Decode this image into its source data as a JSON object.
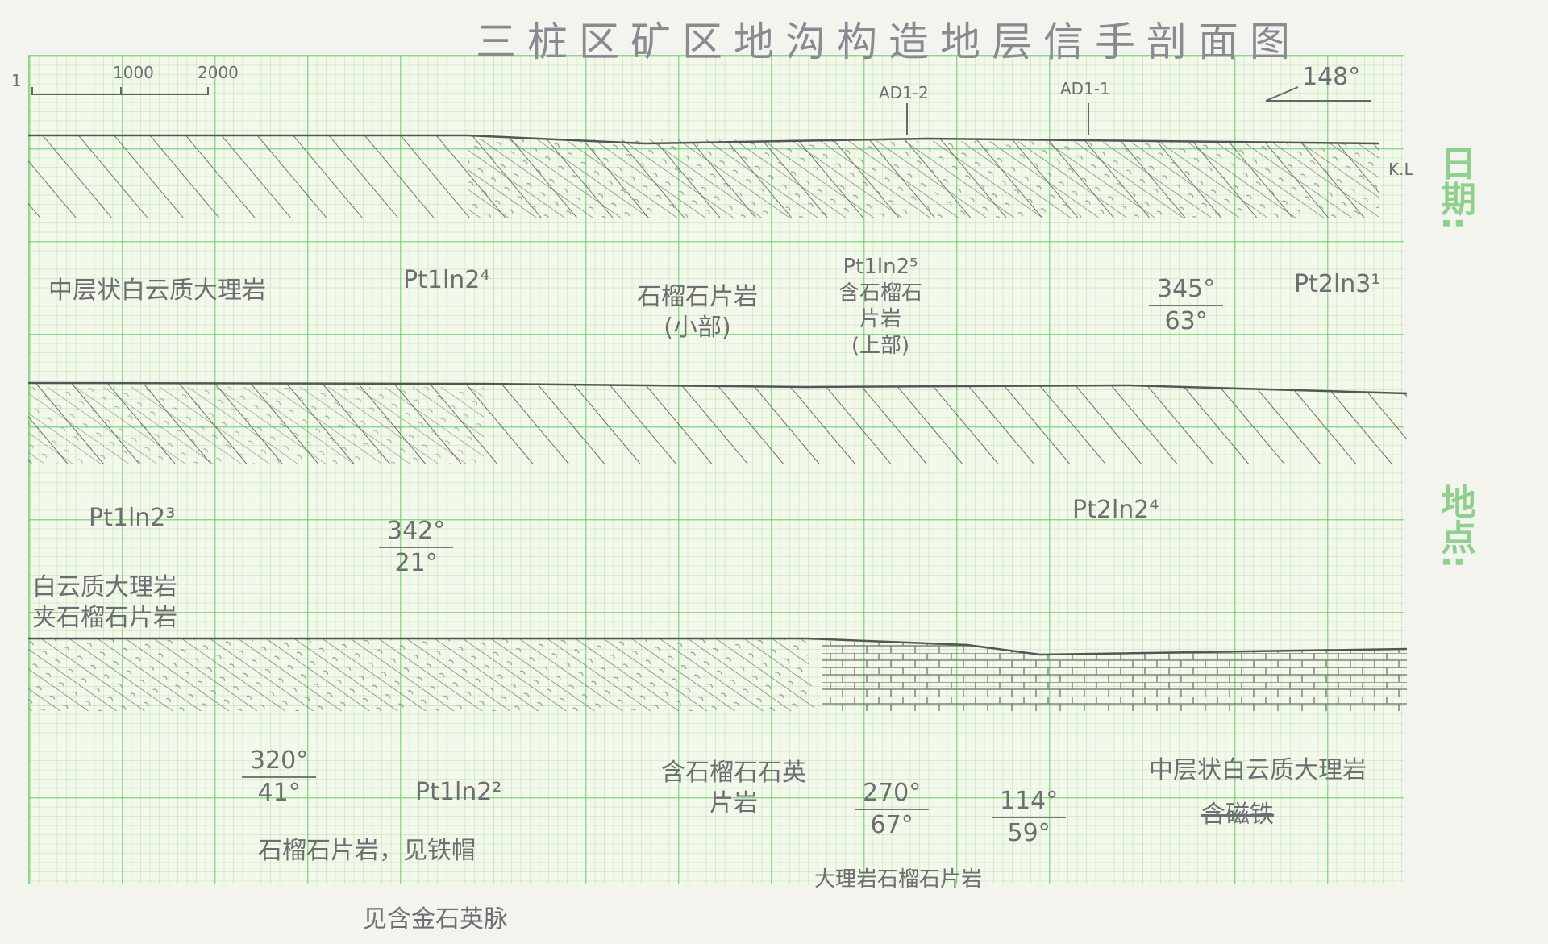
{
  "title": "三桩区矿区地沟构造地层信手剖面图",
  "scale": {
    "start": "1",
    "mid": "1000",
    "end": "2000"
  },
  "markers": {
    "m1": "AD1-2",
    "m2": "AD1-1",
    "azimuth": "148°",
    "kl": "K.L"
  },
  "side_labels": {
    "date": "日期:",
    "place": "地点:"
  },
  "row1": {
    "l1": "中层状白云质大理岩",
    "l2": "Pt1ln2⁴",
    "l3a": "石榴石片岩",
    "l3b": "(小部)",
    "l4a": "Pt1ln2⁵",
    "l4b": "含石榴石",
    "l4c": "片岩",
    "l4d": "(上部)",
    "att_strike": "345°",
    "att_dip": "63°",
    "l5": "Pt2ln3¹"
  },
  "row2": {
    "l1": "Pt1ln2³",
    "att_strike": "342°",
    "att_dip": "21°",
    "l2a": "白云质大理岩",
    "l2b": "夹石榴石片岩",
    "l3": "Pt2ln2⁴"
  },
  "row3": {
    "att1_strike": "320°",
    "att1_dip": "41°",
    "l1": "Pt1ln2²",
    "l2": "石榴石片岩，见铁帽",
    "l3a": "含石榴石石英",
    "l3b": "片岩",
    "att2_strike": "270°",
    "att2_dip": "67°",
    "l4": "大理岩石榴石片岩",
    "att3_strike": "114°",
    "att3_dip": "59°",
    "l5": "中层状白云质大理岩",
    "l6": "含磁铁",
    "l7": "见含金石英脉"
  },
  "colors": {
    "grid": "#5ac85a",
    "pencil": "#6d6d72",
    "paper": "#f3f8ea"
  }
}
